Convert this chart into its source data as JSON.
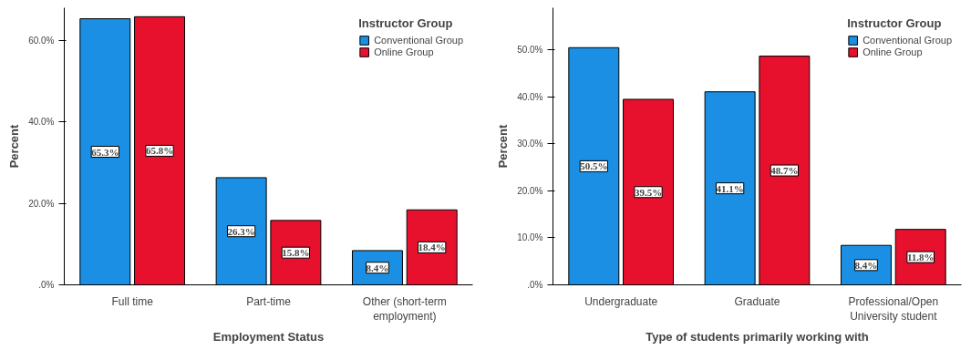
{
  "chart_data": [
    {
      "type": "bar",
      "xlabel": "Employment Status",
      "ylabel": "Percent",
      "legend_title": "Instructor Group",
      "categories": [
        "Full time",
        "Part-time",
        "Other (short-term\nemployment)"
      ],
      "series": [
        {
          "name": "Conventional Group",
          "color": "#1a8fe3",
          "values": [
            65.3,
            26.3,
            8.4
          ],
          "value_labels": [
            "65.3%",
            "26.3%",
            "8.4%"
          ]
        },
        {
          "name": "Online Group",
          "color": "#e8112d",
          "values": [
            65.8,
            15.8,
            18.4
          ],
          "value_labels": [
            "65.8%",
            "15.8%",
            "18.4%"
          ]
        }
      ],
      "ylim": [
        0,
        68
      ],
      "yticks": [
        {
          "value": 0,
          "label": ".0%"
        },
        {
          "value": 20,
          "label": "20.0%"
        },
        {
          "value": 40,
          "label": "40.0%"
        },
        {
          "value": 60,
          "label": "60.0%"
        }
      ],
      "legend": "top right",
      "grid": false
    },
    {
      "type": "bar",
      "xlabel": "Type of students primarily working with",
      "ylabel": "Percent",
      "legend_title": "Instructor Group",
      "categories": [
        "Undergraduate",
        "Graduate",
        "Professional/Open\nUniversity student"
      ],
      "series": [
        {
          "name": "Conventional Group",
          "color": "#1a8fe3",
          "values": [
            50.5,
            41.1,
            8.4
          ],
          "value_labels": [
            "50.5%",
            "41.1%",
            "8.4%"
          ]
        },
        {
          "name": "Online Group",
          "color": "#e8112d",
          "values": [
            39.5,
            48.7,
            11.8
          ],
          "value_labels": [
            "39.5%",
            "48.7%",
            "11.8%"
          ]
        }
      ],
      "ylim": [
        0,
        59
      ],
      "yticks": [
        {
          "value": 0,
          "label": ".0%"
        },
        {
          "value": 10,
          "label": "10.0%"
        },
        {
          "value": 20,
          "label": "20.0%"
        },
        {
          "value": 30,
          "label": "30.0%"
        },
        {
          "value": 40,
          "label": "40.0%"
        },
        {
          "value": 50,
          "label": "50.0%"
        }
      ],
      "legend": "top right",
      "grid": false
    }
  ]
}
